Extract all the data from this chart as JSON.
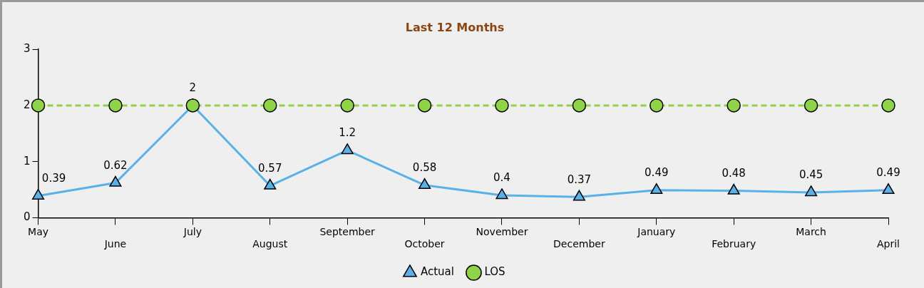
{
  "chart_data": {
    "type": "line",
    "title": "Last 12 Months",
    "categories": [
      "May",
      "June",
      "July",
      "August",
      "September",
      "October",
      "November",
      "December",
      "January",
      "February",
      "March",
      "April"
    ],
    "series": [
      {
        "name": "Actual",
        "color": "#5ab0e8",
        "marker": "triangle",
        "line_style": "solid",
        "values": [
          0.39,
          0.62,
          2,
          0.57,
          1.2,
          0.58,
          0.4,
          0.37,
          0.49,
          0.48,
          0.45,
          0.49
        ],
        "value_labels": [
          "0.39",
          "0.62",
          "2",
          "0.57",
          "1.2",
          "0.58",
          "0.4",
          "0.37",
          "0.49",
          "0.48",
          "0.45",
          "0.49"
        ]
      },
      {
        "name": "LOS",
        "color": "#8fd448",
        "marker": "circle",
        "line_style": "dashed",
        "values": [
          2,
          2,
          2,
          2,
          2,
          2,
          2,
          2,
          2,
          2,
          2,
          2
        ]
      }
    ],
    "ylim": [
      0,
      3
    ],
    "yticks": [
      0,
      1,
      2,
      3
    ],
    "grid": false,
    "legend": "bottom"
  }
}
